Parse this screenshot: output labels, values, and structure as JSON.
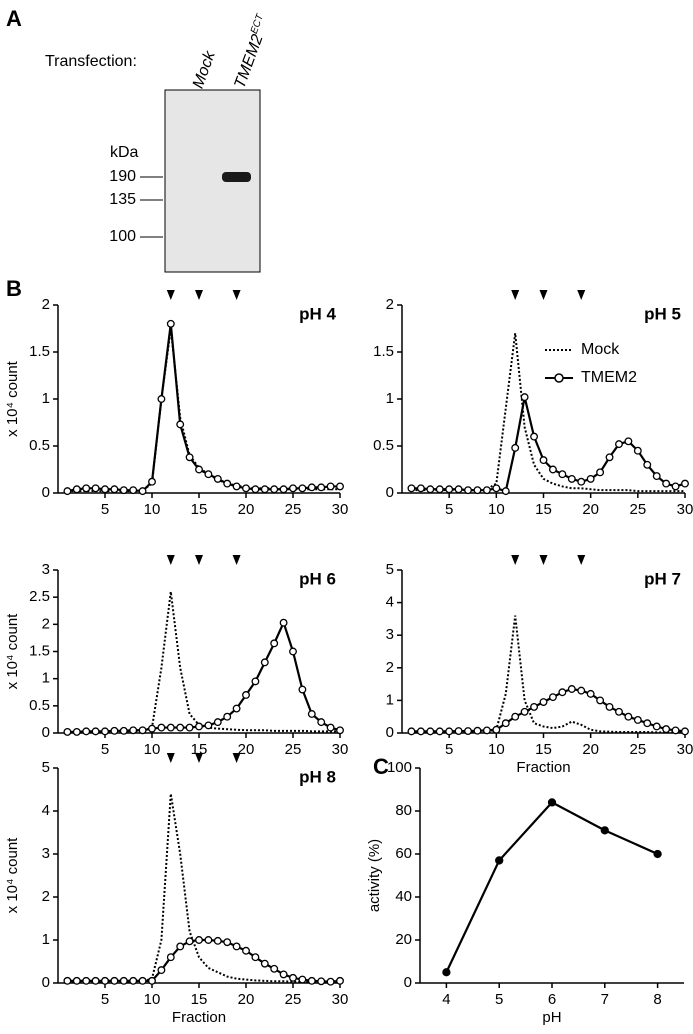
{
  "blot": {
    "panel_label": "A",
    "transfection_label": "Transfection:",
    "lanes": [
      {
        "text": "Mock"
      },
      {
        "text": "TMEM2",
        "superscript": "ECT"
      }
    ],
    "unit": "kDa",
    "markers": [
      190,
      135,
      100
    ]
  },
  "chart_data": [
    {
      "type": "line",
      "panel_label": "B",
      "title": "pH 4",
      "ylabel": "x 10⁴ count",
      "x": [
        1,
        2,
        3,
        4,
        5,
        6,
        7,
        8,
        9,
        10,
        11,
        12,
        13,
        14,
        15,
        16,
        17,
        18,
        19,
        20,
        21,
        22,
        23,
        24,
        25,
        26,
        27,
        28,
        29,
        30
      ],
      "xlim": [
        0,
        30
      ],
      "xticks": [
        5,
        10,
        15,
        20,
        25,
        30
      ],
      "ylim": [
        0,
        2
      ],
      "yticks": [
        0,
        0.5,
        1,
        1.5,
        2
      ],
      "arrows": [
        12,
        15,
        19
      ],
      "series": [
        {
          "color": "#000000",
          "line_style": "dotted",
          "marker": "none",
          "values": [
            0.02,
            0.02,
            0.02,
            0.02,
            0.02,
            0.02,
            0.02,
            0.02,
            0.03,
            0.1,
            1.0,
            1.75,
            0.8,
            0.4,
            0.27,
            0.2,
            0.14,
            0.1,
            0.08,
            0.06,
            0.05,
            0.05,
            0.05,
            0.04,
            0.04,
            0.04,
            0.04,
            0.04,
            0.04,
            0.04
          ]
        },
        {
          "color": "#000000",
          "line_style": "solid",
          "marker": "open-circle",
          "values": [
            0.02,
            0.04,
            0.05,
            0.05,
            0.04,
            0.04,
            0.03,
            0.03,
            0.02,
            0.12,
            1.0,
            1.8,
            0.73,
            0.38,
            0.25,
            0.2,
            0.15,
            0.1,
            0.07,
            0.05,
            0.04,
            0.04,
            0.04,
            0.04,
            0.05,
            0.05,
            0.06,
            0.06,
            0.07,
            0.07
          ]
        }
      ]
    },
    {
      "type": "line",
      "title": "pH 5",
      "legend": "top-right",
      "x": [
        1,
        2,
        3,
        4,
        5,
        6,
        7,
        8,
        9,
        10,
        11,
        12,
        13,
        14,
        15,
        16,
        17,
        18,
        19,
        20,
        21,
        22,
        23,
        24,
        25,
        26,
        27,
        28,
        29,
        30
      ],
      "xlim": [
        0,
        30
      ],
      "xticks": [
        5,
        10,
        15,
        20,
        25,
        30
      ],
      "ylim": [
        0,
        2
      ],
      "yticks": [
        0,
        0.5,
        1,
        1.5,
        2
      ],
      "arrows": [
        12,
        15,
        19
      ],
      "series": [
        {
          "name": "Mock",
          "color": "#000000",
          "line_style": "dotted",
          "marker": "none",
          "values": [
            0.03,
            0.03,
            0.03,
            0.03,
            0.03,
            0.03,
            0.03,
            0.03,
            0.04,
            0.1,
            0.9,
            1.7,
            0.7,
            0.3,
            0.15,
            0.1,
            0.07,
            0.05,
            0.05,
            0.04,
            0.03,
            0.03,
            0.03,
            0.03,
            0.02,
            0.02,
            0.02,
            0.02,
            0.02,
            0.02
          ]
        },
        {
          "name": "TMEM2",
          "color": "#000000",
          "line_style": "solid",
          "marker": "open-circle",
          "values": [
            0.05,
            0.05,
            0.04,
            0.04,
            0.04,
            0.04,
            0.03,
            0.03,
            0.03,
            0.05,
            0.02,
            0.48,
            1.02,
            0.6,
            0.35,
            0.25,
            0.2,
            0.15,
            0.12,
            0.15,
            0.22,
            0.38,
            0.52,
            0.55,
            0.45,
            0.3,
            0.18,
            0.1,
            0.07,
            0.1
          ]
        }
      ]
    },
    {
      "type": "line",
      "title": "pH 6",
      "ylabel": "x 10⁴ count",
      "x": [
        1,
        2,
        3,
        4,
        5,
        6,
        7,
        8,
        9,
        10,
        11,
        12,
        13,
        14,
        15,
        16,
        17,
        18,
        19,
        20,
        21,
        22,
        23,
        24,
        25,
        26,
        27,
        28,
        29,
        30
      ],
      "xlim": [
        0,
        30
      ],
      "xticks": [
        5,
        10,
        15,
        20,
        25,
        30
      ],
      "ylim": [
        0,
        3
      ],
      "yticks": [
        0,
        0.5,
        1,
        1.5,
        2,
        2.5,
        3
      ],
      "arrows": [
        12,
        15,
        19
      ],
      "series": [
        {
          "color": "#000000",
          "line_style": "dotted",
          "marker": "none",
          "values": [
            0.02,
            0.02,
            0.02,
            0.02,
            0.02,
            0.02,
            0.03,
            0.03,
            0.04,
            0.1,
            1.2,
            2.6,
            1.2,
            0.35,
            0.15,
            0.1,
            0.08,
            0.07,
            0.06,
            0.05,
            0.05,
            0.05,
            0.04,
            0.04,
            0.04,
            0.04,
            0.03,
            0.03,
            0.03,
            0.03
          ]
        },
        {
          "color": "#000000",
          "line_style": "solid",
          "marker": "open-circle",
          "values": [
            0.02,
            0.02,
            0.03,
            0.03,
            0.03,
            0.04,
            0.04,
            0.05,
            0.05,
            0.08,
            0.1,
            0.1,
            0.1,
            0.1,
            0.12,
            0.14,
            0.2,
            0.3,
            0.45,
            0.7,
            0.95,
            1.3,
            1.65,
            2.03,
            1.5,
            0.8,
            0.35,
            0.2,
            0.1,
            0.05
          ]
        }
      ]
    },
    {
      "type": "line",
      "title": "pH 7",
      "xlabel": "Fraction",
      "x": [
        1,
        2,
        3,
        4,
        5,
        6,
        7,
        8,
        9,
        10,
        11,
        12,
        13,
        14,
        15,
        16,
        17,
        18,
        19,
        20,
        21,
        22,
        23,
        24,
        25,
        26,
        27,
        28,
        29,
        30
      ],
      "xlim": [
        0,
        30
      ],
      "xticks": [
        5,
        10,
        15,
        20,
        25,
        30
      ],
      "ylim": [
        0,
        5
      ],
      "yticks": [
        0,
        1,
        2,
        3,
        4,
        5
      ],
      "arrows": [
        12,
        15,
        19
      ],
      "series": [
        {
          "color": "#000000",
          "line_style": "dotted",
          "marker": "none",
          "values": [
            0.02,
            0.02,
            0.02,
            0.02,
            0.02,
            0.02,
            0.03,
            0.03,
            0.04,
            0.1,
            1.2,
            3.6,
            1.0,
            0.3,
            0.2,
            0.15,
            0.2,
            0.35,
            0.25,
            0.1,
            0.05,
            0.04,
            0.03,
            0.03,
            0.03,
            0.03,
            0.02,
            0.02,
            0.02,
            0.02
          ]
        },
        {
          "color": "#000000",
          "line_style": "solid",
          "marker": "open-circle",
          "values": [
            0.05,
            0.05,
            0.05,
            0.05,
            0.05,
            0.06,
            0.06,
            0.07,
            0.08,
            0.1,
            0.3,
            0.5,
            0.65,
            0.8,
            0.95,
            1.1,
            1.25,
            1.35,
            1.3,
            1.2,
            1.0,
            0.8,
            0.65,
            0.5,
            0.4,
            0.3,
            0.2,
            0.12,
            0.08,
            0.05
          ]
        }
      ]
    },
    {
      "type": "line",
      "title": "pH 8",
      "ylabel": "x 10⁴ count",
      "xlabel": "Fraction",
      "x": [
        1,
        2,
        3,
        4,
        5,
        6,
        7,
        8,
        9,
        10,
        11,
        12,
        13,
        14,
        15,
        16,
        17,
        18,
        19,
        20,
        21,
        22,
        23,
        24,
        25,
        26,
        27,
        28,
        29,
        30
      ],
      "xlim": [
        0,
        30
      ],
      "xticks": [
        5,
        10,
        15,
        20,
        25,
        30
      ],
      "ylim": [
        0,
        5
      ],
      "yticks": [
        0,
        1,
        2,
        3,
        4,
        5
      ],
      "arrows": [
        12,
        15,
        19
      ],
      "series": [
        {
          "color": "#000000",
          "line_style": "dotted",
          "marker": "none",
          "values": [
            0.02,
            0.02,
            0.02,
            0.02,
            0.02,
            0.02,
            0.03,
            0.03,
            0.04,
            0.1,
            1.0,
            4.4,
            3.0,
            1.2,
            0.6,
            0.35,
            0.25,
            0.15,
            0.1,
            0.08,
            0.06,
            0.05,
            0.04,
            0.04,
            0.03,
            0.03,
            0.03,
            0.02,
            0.02,
            0.02
          ]
        },
        {
          "color": "#000000",
          "line_style": "solid",
          "marker": "open-circle",
          "values": [
            0.05,
            0.05,
            0.05,
            0.05,
            0.05,
            0.05,
            0.05,
            0.05,
            0.05,
            0.05,
            0.3,
            0.6,
            0.85,
            0.97,
            1.0,
            1.0,
            0.98,
            0.95,
            0.85,
            0.75,
            0.6,
            0.45,
            0.33,
            0.2,
            0.12,
            0.08,
            0.05,
            0.04,
            0.03,
            0.05
          ]
        }
      ]
    },
    {
      "type": "line",
      "panel_label": "C",
      "ylabel": "activity (%)",
      "xlabel": "pH",
      "x": [
        4,
        5,
        6,
        7,
        8
      ],
      "values": [
        5,
        57,
        84,
        71,
        60
      ],
      "color": "#000000",
      "marker": "filled-circle",
      "xlim": [
        3.5,
        8.5
      ],
      "xticks": [
        4,
        5,
        6,
        7,
        8
      ],
      "ylim": [
        0,
        100
      ],
      "yticks": [
        0,
        20,
        40,
        60,
        80,
        100
      ]
    }
  ]
}
